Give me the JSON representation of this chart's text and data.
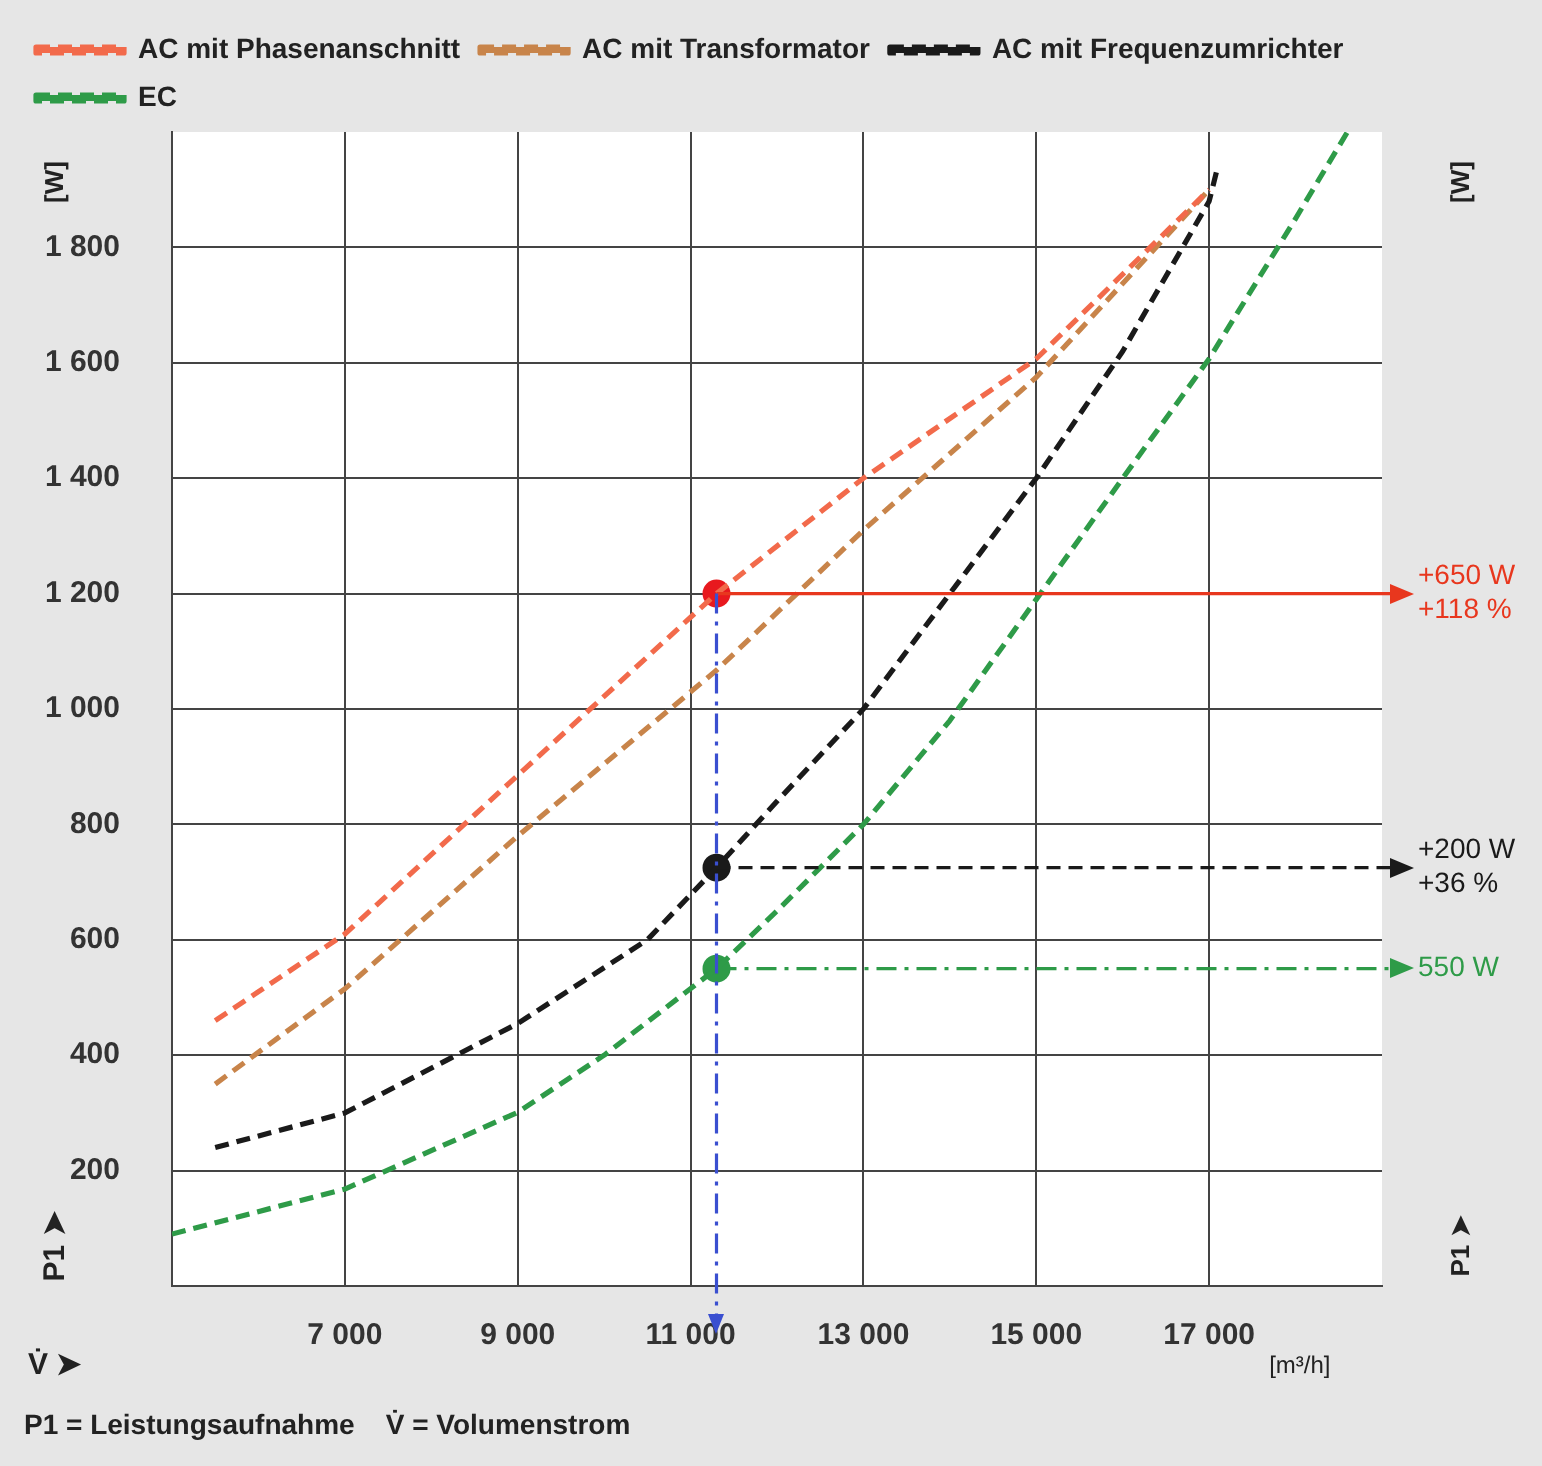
{
  "chart_data": {
    "type": "line",
    "xlabel": "V̇ ➤",
    "ylabel": "P1 ➤",
    "xlim": [
      5000,
      19000
    ],
    "ylim": [
      0,
      2000
    ],
    "xticks": [
      {
        "value": 7000,
        "label": "7 000"
      },
      {
        "value": 9000,
        "label": "9 000"
      },
      {
        "value": 11000,
        "label": "11 000"
      },
      {
        "value": 13000,
        "label": "13 000"
      },
      {
        "value": 15000,
        "label": "15 000"
      },
      {
        "value": 17000,
        "label": "17 000"
      }
    ],
    "yticks": [
      200,
      400,
      600,
      800,
      {
        "value": 1000,
        "label": "1 000"
      },
      {
        "value": 1200,
        "label": "1 200"
      },
      {
        "value": 1400,
        "label": "1 400"
      },
      {
        "value": 1600,
        "label": "1 600"
      },
      {
        "value": 1800,
        "label": "1 800"
      }
    ],
    "grid": true,
    "legend": "top left",
    "line_style": "dashed",
    "marker": "none",
    "series": [
      {
        "name": "AC mit Phasenanschnitt",
        "color": "#f26a4b",
        "x": [
          5500,
          7000,
          9000,
          11300,
          13000,
          15000,
          17000
        ],
        "values": [
          460,
          610,
          885,
          1200,
          1400,
          1607,
          1900
        ]
      },
      {
        "name": "AC mit Transformator",
        "color": "#c8844a",
        "x": [
          5500,
          7000,
          9000,
          11300,
          13000,
          15000,
          17000
        ],
        "values": [
          350,
          515,
          780,
          1067,
          1310,
          1575,
          1900
        ]
      },
      {
        "name": "AC mit Frequenzumrichter",
        "color": "#1a1a1a",
        "x": [
          5500,
          7000,
          9000,
          10500,
          11300,
          12000,
          13000,
          14000,
          15000,
          16000,
          17000,
          17100
        ],
        "values": [
          240,
          300,
          455,
          600,
          725,
          840,
          1000,
          1200,
          1400,
          1620,
          1880,
          1940
        ]
      },
      {
        "name": "EC",
        "color": "#2e9b48",
        "x": [
          5000,
          7000,
          9000,
          10000,
          11300,
          12000,
          13000,
          14000,
          15000,
          16000,
          17000,
          18000,
          18600
        ],
        "values": [
          90,
          168,
          301,
          400,
          550,
          650,
          800,
          980,
          1190,
          1400,
          1607,
          1850,
          2000
        ]
      },
      {
        "type": "scatter",
        "marker": "circle",
        "x": [
          11300,
          11300,
          11300
        ],
        "values": [
          1200,
          725,
          550
        ],
        "colors": [
          "#e8191e",
          "#1a1a1a",
          "#2e9b48"
        ]
      }
    ],
    "ref_lines": [
      {
        "axis": "y",
        "value": 1200,
        "label": "+650 W\n+118 %",
        "color": "#e8371e",
        "line_style": "solid"
      },
      {
        "axis": "y",
        "value": 725,
        "label": "+200 W\n+36 %",
        "color": "#1a1a1a",
        "line_style": "dashed"
      },
      {
        "axis": "y",
        "value": 550,
        "label": "550 W",
        "color": "#2e9b48",
        "line_style": "dashdot"
      },
      {
        "axis": "x",
        "value": 11300,
        "color": "#3a4fd0",
        "line_style": "dashdot"
      }
    ],
    "annotations": [
      "[W]",
      "[W]",
      "P1 ➤",
      "[m³/h]",
      "P1 = Leistungsaufnahme    V̇ = Volumenstrom"
    ]
  }
}
